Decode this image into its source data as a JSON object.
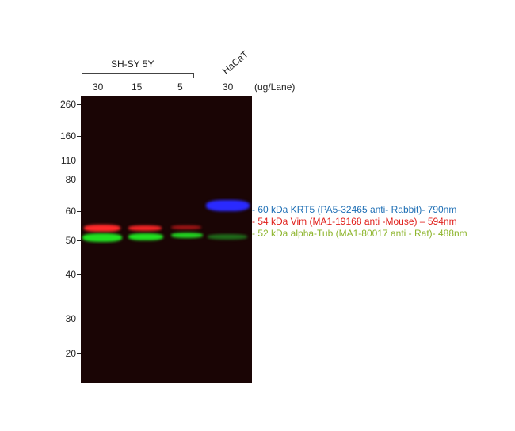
{
  "group_label": "SH-SY 5Y",
  "hacat_label": "HaCaT",
  "lanes": [
    "30",
    "15",
    "5",
    "30"
  ],
  "unit_label": "(ug/Lane)",
  "markers": [
    "260",
    "160",
    "110",
    "80",
    "60",
    "50",
    "40",
    "30",
    "20"
  ],
  "annotations": [
    {
      "text": "- 60 kDa KRT5 (PA5-32465 anti- Rabbit)- 790nm",
      "color": "#1f6fb5"
    },
    {
      "text": "- 54 kDa Vim (MA1-19168 anti -Mouse) – 594nm",
      "color": "#e0201c"
    },
    {
      "text": "- 52 kDa alpha-Tub (MA1-80017 anti - Rat)- 488nm",
      "color": "#8db52c"
    }
  ],
  "colors": {
    "blot": "#1a0505",
    "red_band": "#ff2a2a",
    "green_band": "#22e020",
    "blue_band": "#2a2aff"
  }
}
